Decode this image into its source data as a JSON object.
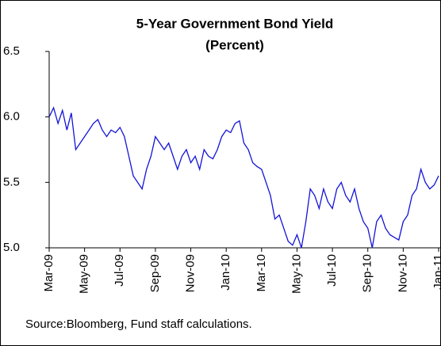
{
  "chart_data": {
    "type": "line",
    "title": "5-Year Government Bond Yield",
    "subtitle": "(Percent)",
    "source": "Source:Bloomberg, Fund staff calculations.",
    "categories": [
      "Mar-09",
      null,
      null,
      null,
      null,
      null,
      null,
      null,
      "May-09",
      null,
      null,
      null,
      null,
      null,
      null,
      null,
      "Jul-09",
      null,
      null,
      null,
      null,
      null,
      null,
      null,
      "Sep-09",
      null,
      null,
      null,
      null,
      null,
      null,
      null,
      "Nov-09",
      null,
      null,
      null,
      null,
      null,
      null,
      null,
      "Jan-10",
      null,
      null,
      null,
      null,
      null,
      null,
      null,
      "Mar-10",
      null,
      null,
      null,
      null,
      null,
      null,
      null,
      "May-10",
      null,
      null,
      null,
      null,
      null,
      null,
      null,
      "Jul-10",
      null,
      null,
      null,
      null,
      null,
      null,
      null,
      "Sep-10",
      null,
      null,
      null,
      null,
      null,
      null,
      null,
      "Nov-10",
      null,
      null,
      null,
      null,
      null,
      null,
      null,
      "Jan-11"
    ],
    "series": [
      {
        "color": "#1414d8",
        "values": [
          6.0,
          6.07,
          5.95,
          6.05,
          5.9,
          6.03,
          5.75,
          5.8,
          5.85,
          5.9,
          5.95,
          5.98,
          5.9,
          5.85,
          5.9,
          5.88,
          5.92,
          5.85,
          5.7,
          5.55,
          5.5,
          5.45,
          5.6,
          5.7,
          5.85,
          5.8,
          5.75,
          5.8,
          5.7,
          5.6,
          5.7,
          5.75,
          5.65,
          5.7,
          5.6,
          5.75,
          5.7,
          5.68,
          5.75,
          5.85,
          5.9,
          5.88,
          5.95,
          5.97,
          5.8,
          5.75,
          5.65,
          5.62,
          5.6,
          5.5,
          5.4,
          5.22,
          5.25,
          5.15,
          5.05,
          5.02,
          5.1,
          5.0,
          5.2,
          5.45,
          5.4,
          5.3,
          5.45,
          5.35,
          5.3,
          5.45,
          5.5,
          5.4,
          5.35,
          5.45,
          5.3,
          5.2,
          5.15,
          5.0,
          5.2,
          5.25,
          5.15,
          5.1,
          5.08,
          5.06,
          5.2,
          5.25,
          5.4,
          5.45,
          5.6,
          5.5,
          5.45,
          5.48,
          5.55
        ]
      }
    ],
    "ylim": [
      5.0,
      6.5
    ],
    "yticks": [
      {
        "value": 5.0,
        "label": "5.0"
      },
      {
        "value": 5.5,
        "label": "5.5"
      },
      {
        "value": 6.0,
        "label": "6.0"
      },
      {
        "value": 6.5,
        "label": "6.5"
      }
    ],
    "grid": false
  }
}
